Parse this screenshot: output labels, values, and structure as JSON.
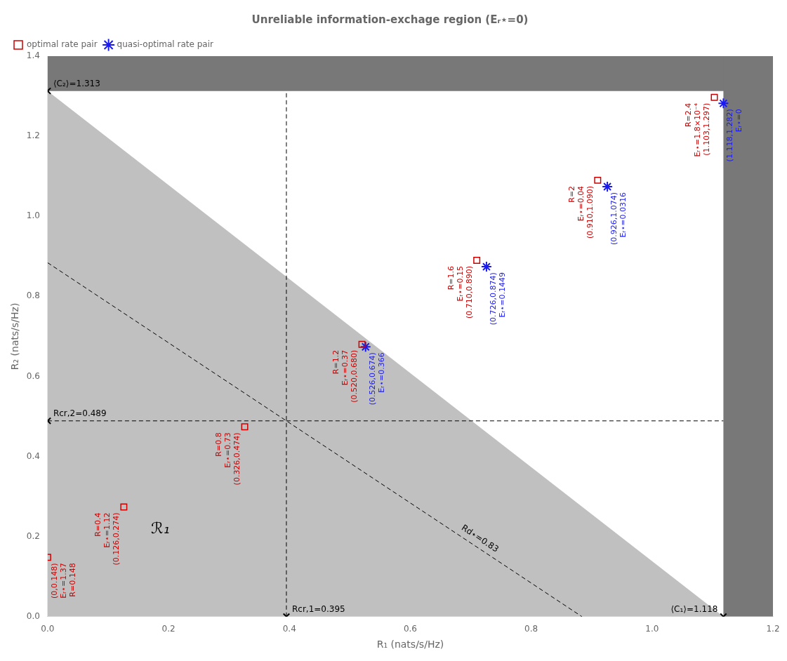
{
  "chart_data": {
    "type": "scatter",
    "title": "Unreliable information-exchage region (Eᵣ⋆=0)",
    "x_label": "R₁ (nats/s/Hz)",
    "y_label": "R₂ (nats/s/Hz)",
    "xlim": [
      0,
      1.2
    ],
    "ylim": [
      0,
      1.4
    ],
    "xticks": [
      {
        "value": 0,
        "label": "0.0"
      },
      0.2,
      0.4,
      0.6,
      0.8,
      {
        "value": 1,
        "label": "1.0"
      },
      1.2
    ],
    "yticks": [
      {
        "value": 0,
        "label": "0.0"
      },
      0.2,
      0.4,
      0.6,
      0.8,
      {
        "value": 1,
        "label": "1.0"
      },
      1.2,
      1.4
    ],
    "grid": false,
    "legend": "upper left",
    "data_labels": true,
    "regions": [
      {
        "x": [
          0,
          1.118,
          0
        ],
        "y": [
          0,
          0,
          1.313
        ],
        "color": "#c0c0c0",
        "label": "ℛ₁"
      },
      {
        "x": [
          0,
          1.2,
          1.2,
          0
        ],
        "y": [
          1.313,
          1.313,
          1.4,
          1.4
        ],
        "color": "#787878"
      },
      {
        "x": [
          1.118,
          1.2,
          1.2,
          1.118
        ],
        "y": [
          0,
          0,
          1.4,
          1.4
        ],
        "color": "#787878"
      }
    ],
    "lines": [
      {
        "x": [
          0,
          1.118
        ],
        "y": [
          0.489,
          0.489
        ],
        "color": "#000000",
        "line_style": "dashed"
      },
      {
        "x": [
          0.395,
          0.395
        ],
        "y": [
          0,
          1.313
        ],
        "color": "#000000",
        "line_style": "dashed"
      },
      {
        "x": [
          0,
          0.884
        ],
        "y": [
          0.884,
          0
        ],
        "color": "#000000",
        "line_style": "dashed",
        "label": "Rd⋆=0.83"
      }
    ],
    "series": [
      {
        "name": "optimal rate pair",
        "color": "#cc0000",
        "marker": "square",
        "x": [
          0.0,
          0.126,
          0.326,
          0.52,
          0.71,
          0.91,
          1.103
        ],
        "values": [
          0.148,
          0.274,
          0.474,
          0.68,
          0.89,
          1.09,
          1.297
        ],
        "value_labels": [
          "(0,0.148)",
          "(0.126,0.274)",
          "(0.326,0.474)",
          "(0.520,0.680)",
          "(0.710,0.890)",
          "(0.910,1.090)",
          "(1.103,1.297)"
        ],
        "annotations": [
          [
            "Eᵣ⋆=1.37",
            "R=0.148"
          ],
          [
            "Eᵣ⋆=1.12",
            "R=0.4"
          ],
          [
            "Eᵣ⋆=0.73",
            "R=0.8"
          ],
          [
            "Eᵣ⋆=0.37",
            "R=1.2"
          ],
          [
            "Eᵣ⋆=0.15",
            "R=1.6"
          ],
          [
            "Eᵣ⋆=0.04",
            "R=2"
          ],
          [
            "Eᵣ⋆=1.8×10⁻⁴",
            "R=2.4"
          ]
        ]
      },
      {
        "name": "quasi-optimal rate pair",
        "color": "#1a1aee",
        "marker": "asterisk",
        "x": [
          0.526,
          0.726,
          0.926,
          1.118
        ],
        "values": [
          0.674,
          0.874,
          1.074,
          1.282
        ],
        "value_labels": [
          "(0.526,0.674)",
          "(0.726,0.874)",
          "(0.926,1.074)",
          "(1.118,1.282)"
        ],
        "annotations": [
          [
            "Eᵣ⋆=0.366"
          ],
          [
            "Eᵣ⋆=0.1449"
          ],
          [
            "Eᵣ⋆=0.0316"
          ],
          [
            "Eᵣ⋆=0"
          ]
        ]
      },
      {
        "color": "#000000",
        "marker": "x",
        "x": [
          0,
          0,
          0.395,
          1.118
        ],
        "values": [
          1.313,
          0.489,
          0,
          0
        ],
        "value_labels": [
          "⟨C₂⟩=1.313",
          "Rcr,2=0.489",
          "Rcr,1=0.395",
          "⟨C₁⟩=1.118"
        ]
      }
    ]
  }
}
